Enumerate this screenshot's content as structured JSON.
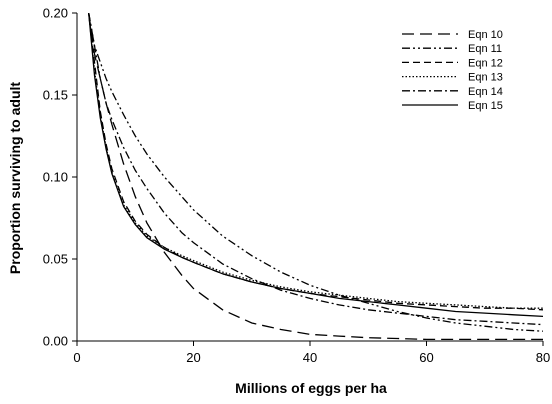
{
  "chart_data": {
    "type": "line",
    "xlabel": "Millions of eggs per ha",
    "ylabel": "Proportion surviving to adult",
    "xlim": [
      0,
      80
    ],
    "ylim": [
      0,
      0.2
    ],
    "x_ticks": [
      0,
      20,
      40,
      60,
      80
    ],
    "x_tick_labels": [
      "0",
      "20",
      "40",
      "60",
      "80"
    ],
    "y_ticks": [
      0,
      0.05,
      0.1,
      0.15,
      0.2
    ],
    "y_tick_labels": [
      "0.00",
      "0.05",
      "0.10",
      "0.15",
      "0.20"
    ],
    "grid": false,
    "legend_position": "top-right",
    "x": [
      2,
      3,
      4,
      5,
      6,
      8,
      10,
      12,
      15,
      18,
      20,
      25,
      30,
      35,
      40,
      45,
      50,
      55,
      60,
      65,
      70,
      75,
      80
    ],
    "series": [
      {
        "name": "Eqn 10",
        "color": "#000000",
        "dash": "long-dash",
        "values": [
          0.2,
          0.175,
          0.16,
          0.145,
          0.132,
          0.108,
          0.088,
          0.072,
          0.054,
          0.04,
          0.032,
          0.019,
          0.011,
          0.007,
          0.004,
          0.003,
          0.002,
          0.0015,
          0.001,
          0.001,
          0.001,
          0.001,
          0.001
        ]
      },
      {
        "name": "Eqn 11",
        "color": "#000000",
        "dash": "dash-dot-dot",
        "values": [
          0.2,
          0.18,
          0.17,
          0.16,
          0.152,
          0.138,
          0.125,
          0.114,
          0.1,
          0.088,
          0.08,
          0.064,
          0.052,
          0.042,
          0.034,
          0.028,
          0.023,
          0.018,
          0.014,
          0.011,
          0.009,
          0.007,
          0.006
        ]
      },
      {
        "name": "Eqn 12",
        "color": "#000000",
        "dash": "dash",
        "values": [
          0.2,
          0.17,
          0.14,
          0.12,
          0.105,
          0.085,
          0.073,
          0.065,
          0.057,
          0.051,
          0.048,
          0.041,
          0.036,
          0.032,
          0.029,
          0.027,
          0.025,
          0.023,
          0.022,
          0.021,
          0.02,
          0.02,
          0.019
        ]
      },
      {
        "name": "Eqn 13",
        "color": "#000000",
        "dash": "dot",
        "values": [
          0.2,
          0.165,
          0.138,
          0.118,
          0.103,
          0.083,
          0.072,
          0.064,
          0.057,
          0.052,
          0.049,
          0.042,
          0.037,
          0.033,
          0.03,
          0.028,
          0.026,
          0.024,
          0.023,
          0.022,
          0.021,
          0.02,
          0.02
        ]
      },
      {
        "name": "Eqn 14",
        "color": "#000000",
        "dash": "dash-dot",
        "values": [
          0.2,
          0.18,
          0.16,
          0.145,
          0.135,
          0.118,
          0.104,
          0.093,
          0.078,
          0.066,
          0.06,
          0.047,
          0.038,
          0.031,
          0.026,
          0.022,
          0.019,
          0.017,
          0.015,
          0.013,
          0.012,
          0.011,
          0.01
        ]
      },
      {
        "name": "Eqn 15",
        "color": "#000000",
        "dash": "solid",
        "values": [
          0.2,
          0.162,
          0.136,
          0.117,
          0.102,
          0.082,
          0.071,
          0.063,
          0.056,
          0.051,
          0.048,
          0.041,
          0.036,
          0.032,
          0.029,
          0.026,
          0.024,
          0.022,
          0.02,
          0.018,
          0.017,
          0.016,
          0.015
        ]
      }
    ]
  }
}
